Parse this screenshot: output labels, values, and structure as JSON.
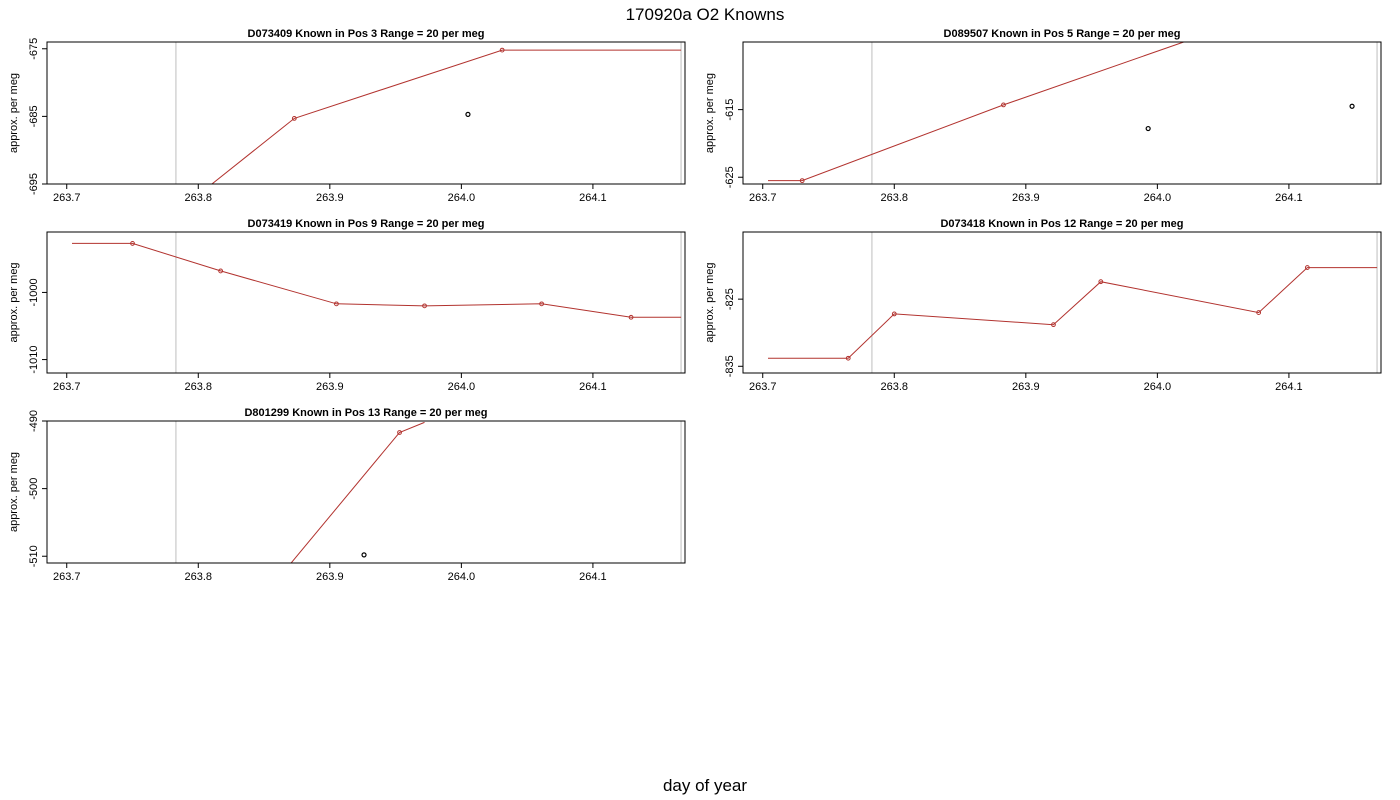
{
  "figure": {
    "title": "170920a   O2 Knowns",
    "xlabel": "day of year"
  },
  "colors": {
    "line": "#b2332f",
    "point_edge": "#000000",
    "vline": "#c8c8c8",
    "frame": "#000000"
  },
  "chart_data": [
    {
      "type": "line",
      "title": "D073409    Known in Pos 3         Range = 20 per meg",
      "ylabel": "approx. per meg",
      "xlim": [
        263.685,
        264.17
      ],
      "ylim": [
        -695,
        -674
      ],
      "xticks": [
        "263.7",
        "263.8",
        "263.9",
        "264.0",
        "264.1"
      ],
      "yticks": [
        -675,
        -685,
        -695
      ],
      "vlines": [
        263.783,
        264.167
      ],
      "series": [
        {
          "x": [
            263.72,
            263.873,
            264.031,
            264.167
          ],
          "y": [
            -709,
            -685.3,
            -675.2,
            -675.2
          ],
          "markers": [
            false,
            true,
            true,
            false
          ]
        }
      ],
      "outliers": [
        {
          "x": 264.005,
          "y": -684.7
        }
      ]
    },
    {
      "type": "line",
      "title": "D089507    Known in Pos 5         Range = 20 per meg",
      "ylabel": "approx. per meg",
      "xlim": [
        263.685,
        264.17
      ],
      "ylim": [
        -626,
        -605
      ],
      "xticks": [
        "263.7",
        "263.8",
        "263.9",
        "264.0",
        "264.1"
      ],
      "yticks": [
        -615,
        -625
      ],
      "vlines": [
        263.783,
        264.167
      ],
      "series": [
        {
          "x": [
            263.704,
            263.73,
            263.883,
            264.02
          ],
          "y": [
            -625.5,
            -625.5,
            -614.3,
            -605
          ],
          "markers": [
            false,
            true,
            true,
            false
          ]
        }
      ],
      "outliers": [
        {
          "x": 263.993,
          "y": -617.8
        },
        {
          "x": 264.148,
          "y": -614.5
        }
      ]
    },
    {
      "type": "line",
      "title": "D073419    Known in Pos 9         Range = 20 per meg",
      "ylabel": "approx. per meg",
      "xlim": [
        263.685,
        264.17
      ],
      "ylim": [
        -1012,
        -991
      ],
      "xticks": [
        "263.7",
        "263.8",
        "263.9",
        "264.0",
        "264.1"
      ],
      "yticks": [
        -1000,
        -1010
      ],
      "vlines": [
        263.783,
        264.167
      ],
      "series": [
        {
          "x": [
            263.704,
            263.75,
            263.817,
            263.905,
            263.972,
            264.061,
            264.129,
            264.167
          ],
          "y": [
            -992.7,
            -992.7,
            -996.8,
            -1001.7,
            -1002,
            -1001.7,
            -1003.7,
            -1003.7
          ],
          "markers": [
            false,
            true,
            true,
            true,
            true,
            true,
            true,
            false
          ]
        }
      ],
      "outliers": []
    },
    {
      "type": "line",
      "title": "D073418    Known in Pos 12         Range = 20 per meg",
      "ylabel": "approx. per meg",
      "xlim": [
        263.685,
        264.17
      ],
      "ylim": [
        -836,
        -815
      ],
      "xticks": [
        "263.7",
        "263.8",
        "263.9",
        "264.0",
        "264.1"
      ],
      "yticks": [
        -825,
        -835
      ],
      "vlines": [
        263.783,
        264.167
      ],
      "series": [
        {
          "x": [
            263.704,
            263.765,
            263.8,
            263.921,
            263.957,
            264.077,
            264.114,
            264.167
          ],
          "y": [
            -833.8,
            -833.8,
            -827.2,
            -828.8,
            -822.4,
            -827,
            -820.3,
            -820.3
          ],
          "markers": [
            false,
            true,
            true,
            true,
            true,
            true,
            true,
            false
          ]
        }
      ],
      "outliers": []
    },
    {
      "type": "line",
      "title": "D801299    Known in Pos 13         Range = 20 per meg",
      "ylabel": "approx. per meg",
      "xlim": [
        263.685,
        264.17
      ],
      "ylim": [
        -511,
        -490
      ],
      "xticks": [
        "263.7",
        "263.8",
        "263.9",
        "264.0",
        "264.1"
      ],
      "yticks": [
        -490,
        -500,
        -510
      ],
      "vlines": [
        263.783,
        264.167
      ],
      "series": [
        {
          "x": [
            263.85,
            263.953,
            263.972
          ],
          "y": [
            -515.8,
            -491.7,
            -490.2
          ],
          "markers": [
            false,
            true,
            false
          ]
        }
      ],
      "outliers": [
        {
          "x": 263.926,
          "y": -509.8
        }
      ]
    }
  ]
}
